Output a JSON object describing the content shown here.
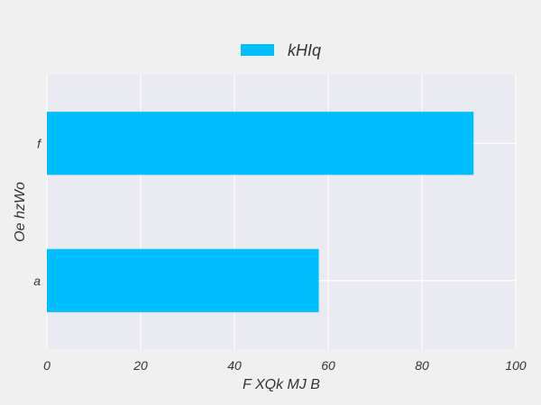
{
  "chart_data": {
    "type": "bar",
    "orientation": "horizontal",
    "categories": [
      "a",
      "f"
    ],
    "series": [
      {
        "name": "kHIq",
        "values": [
          58,
          91
        ],
        "color": "#00bfff"
      }
    ],
    "xlabel": "F XQk MJ B",
    "ylabel": "Oe hzWo",
    "xlim": [
      0,
      100
    ],
    "xticks": [
      "0",
      "20",
      "40",
      "60",
      "80",
      "100"
    ],
    "grid": true,
    "legend_position": "top-center",
    "plot_background": "#eaeaf2",
    "page_background": "#f0f0f0"
  }
}
